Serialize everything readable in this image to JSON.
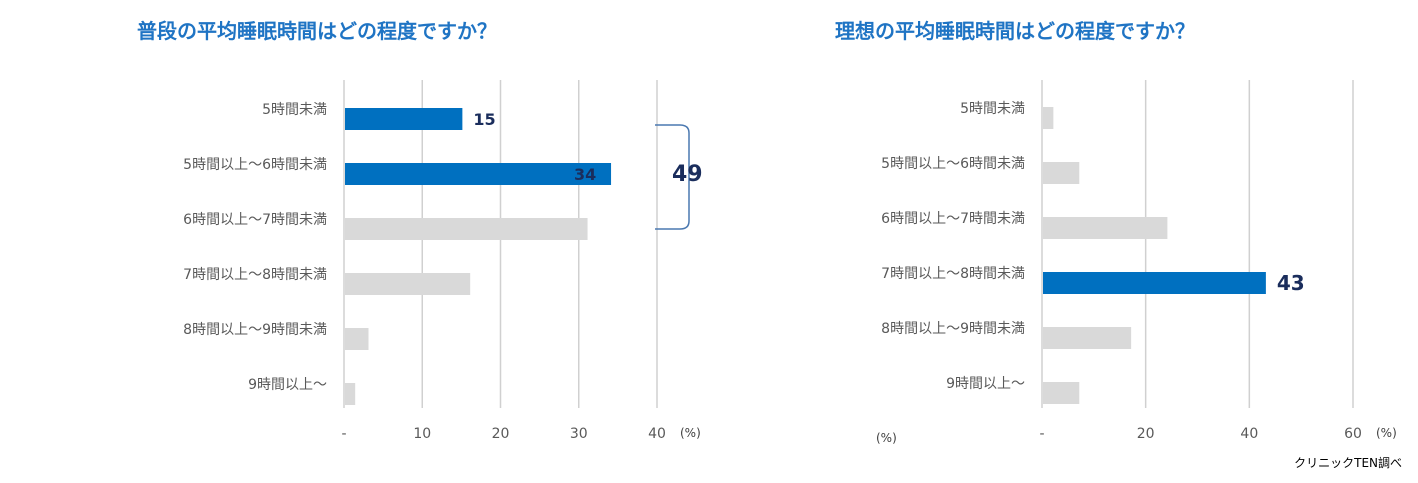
{
  "chart_data": [
    {
      "type": "bar",
      "orientation": "horizontal",
      "title": "普段の平均睡眠時間はどの程度ですか？",
      "categories": [
        "5時間未満",
        "5時間以上～6時間未満",
        "6時間以上～7時間未満",
        "7時間以上～8時間未満",
        "8時間以上～9時間未満",
        "9時間以上～"
      ],
      "values": [
        15,
        34,
        31,
        16,
        3,
        1.3
      ],
      "highlight": [
        true,
        true,
        false,
        false,
        false,
        false
      ],
      "data_labels": [
        "15",
        "34",
        "",
        "",
        "",
        ""
      ],
      "xlim": [
        0,
        40
      ],
      "xticks": [
        0,
        10,
        20,
        30,
        40
      ],
      "xtick_labels": [
        "-",
        "10",
        "20",
        "30",
        "40"
      ],
      "unit_label": "(%)",
      "annotation": {
        "text": "49",
        "spans_categories": [
          "5時間未満",
          "5時間以上～6時間未満"
        ]
      },
      "grid": true,
      "colors": {
        "highlight": "#0070c0",
        "base": "#d9d9d9"
      }
    },
    {
      "type": "bar",
      "orientation": "horizontal",
      "title": "理想の平均睡眠時間はどの程度ですか？",
      "categories": [
        "5時間未満",
        "5時間以上～6時間未満",
        "6時間以上～7時間未満",
        "7時間以上～8時間未満",
        "8時間以上～9時間未満",
        "9時間以上～"
      ],
      "values": [
        2,
        7,
        24,
        43,
        17,
        7
      ],
      "highlight": [
        false,
        false,
        false,
        true,
        false,
        false
      ],
      "data_labels": [
        "",
        "",
        "",
        "43",
        "",
        ""
      ],
      "xlim": [
        0,
        60
      ],
      "xticks": [
        0,
        20,
        40,
        60
      ],
      "xtick_labels": [
        "-",
        "20",
        "40",
        "60"
      ],
      "unit_label": "(%)",
      "unit_label_left": "(%)",
      "grid": true,
      "colors": {
        "highlight": "#0070c0",
        "base": "#d9d9d9"
      }
    }
  ],
  "source_note": "クリニックTEN調べ"
}
